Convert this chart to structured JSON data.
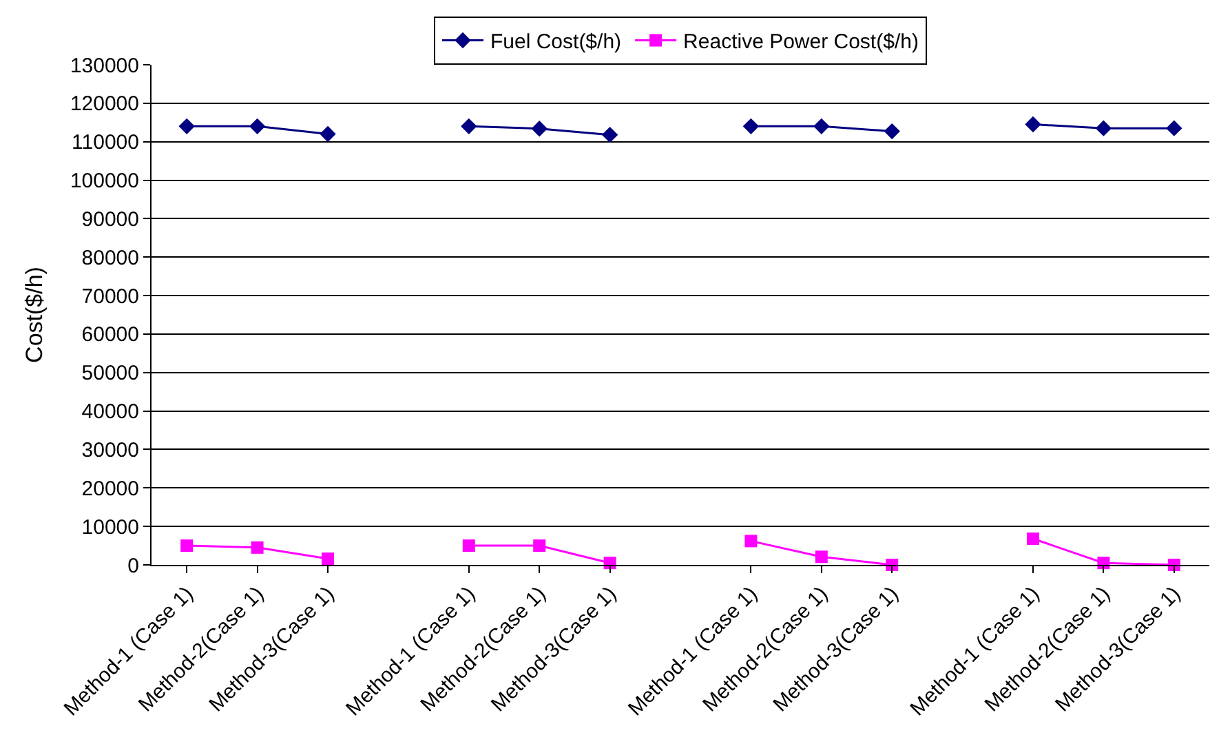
{
  "chart_data": {
    "type": "line",
    "ylabel": "Cost($/h)",
    "categories": [
      "Method-1 (Case 1)",
      "Method-2(Case 1)",
      "Method-3(Case 1)",
      null,
      "Method-1 (Case 1)",
      "Method-2(Case 1)",
      "Method-3(Case 1)",
      null,
      "Method-1 (Case 1)",
      "Method-2(Case 1)",
      "Method-3(Case 1)",
      null,
      "Method-1 (Case 1)",
      "Method-2(Case 1)",
      "Method-3(Case 1)"
    ],
    "series": [
      {
        "name": "Fuel Cost($/h)",
        "color": "#000080",
        "marker": "diamond",
        "values": [
          114000,
          114000,
          112000,
          null,
          114000,
          113400,
          111800,
          null,
          114000,
          114000,
          112700,
          null,
          114500,
          113500,
          113500
        ]
      },
      {
        "name": "Reactive Power Cost($/h)",
        "color": "#ff00ff",
        "marker": "square",
        "values": [
          5000,
          4500,
          1600,
          null,
          5000,
          5000,
          500,
          null,
          6200,
          2100,
          0,
          null,
          6800,
          500,
          0
        ]
      }
    ],
    "ylim": [
      0,
      130000
    ],
    "yticks": [
      0,
      10000,
      20000,
      30000,
      40000,
      50000,
      60000,
      70000,
      80000,
      90000,
      100000,
      110000,
      120000,
      130000
    ],
    "grid": "y",
    "legend": "top",
    "line_style": "solid"
  }
}
